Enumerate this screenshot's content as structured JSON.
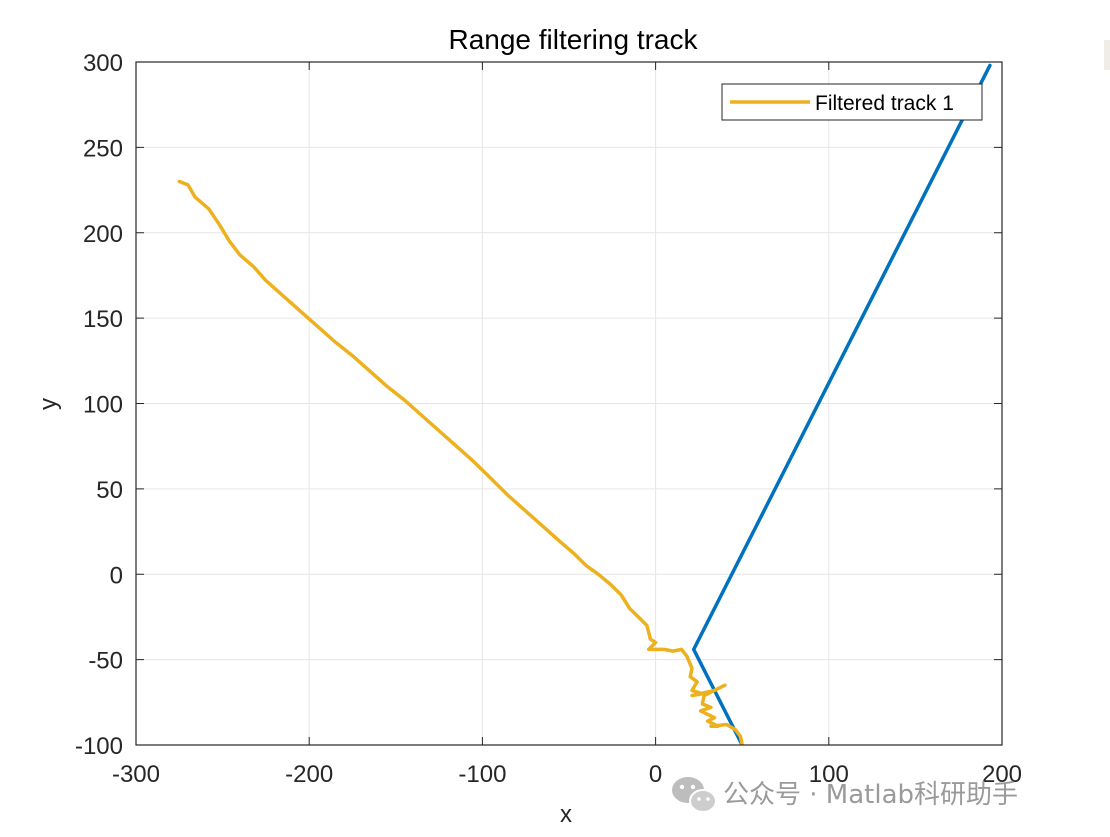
{
  "chart_data": {
    "type": "line",
    "title": "Range filtering track",
    "xlabel": "x",
    "ylabel": "y",
    "xlim": [
      -300,
      200
    ],
    "ylim": [
      -100,
      300
    ],
    "xticks": [
      -300,
      -200,
      -100,
      0,
      100,
      200
    ],
    "yticks": [
      -100,
      -50,
      0,
      50,
      100,
      150,
      200,
      250,
      300
    ],
    "xtick_labels": [
      "-300",
      "-200",
      "-100",
      "0",
      "100",
      "200"
    ],
    "ytick_labels": [
      "-100",
      "-50",
      "0",
      "50",
      "100",
      "150",
      "200",
      "250",
      "300"
    ],
    "grid": true,
    "legend_position": "top-right",
    "series": [
      {
        "name": "",
        "color": "#0072BD",
        "x": [
          50,
          22,
          193
        ],
        "y": [
          -100,
          -44,
          298
        ]
      },
      {
        "name": "Filtered track 1",
        "color": "#EDB120",
        "x": [
          -275,
          -270,
          -266,
          -258,
          -252,
          -246,
          -240,
          -232,
          -225,
          -215,
          -205,
          -195,
          -185,
          -175,
          -165,
          -155,
          -145,
          -135,
          -125,
          -115,
          -105,
          -95,
          -85,
          -75,
          -65,
          -55,
          -47,
          -40,
          -33,
          -26,
          -20,
          -15,
          -10,
          -5,
          -3,
          0,
          -4,
          5,
          10,
          15,
          18,
          21,
          20,
          24,
          21,
          27,
          21,
          34,
          40,
          28,
          27,
          32,
          26,
          34,
          30,
          36,
          32,
          41,
          46,
          49,
          50
        ],
        "y": [
          230,
          228,
          221,
          214,
          205,
          195,
          187,
          180,
          172,
          163,
          154,
          145,
          136,
          128,
          119,
          110,
          102,
          93,
          84,
          75,
          66,
          56,
          46,
          37,
          28,
          19,
          12,
          5,
          0,
          -6,
          -12,
          -20,
          -25,
          -30,
          -38,
          -40,
          -44,
          -44,
          -45,
          -44,
          -48,
          -55,
          -60,
          -63,
          -68,
          -70,
          -71,
          -68,
          -65,
          -71,
          -76,
          -78,
          -80,
          -84,
          -86,
          -89,
          -89,
          -88,
          -91,
          -95,
          -100
        ]
      }
    ]
  },
  "watermark": {
    "icon": "wechat-icon",
    "text": "公众号 · Matlab科研助手"
  }
}
